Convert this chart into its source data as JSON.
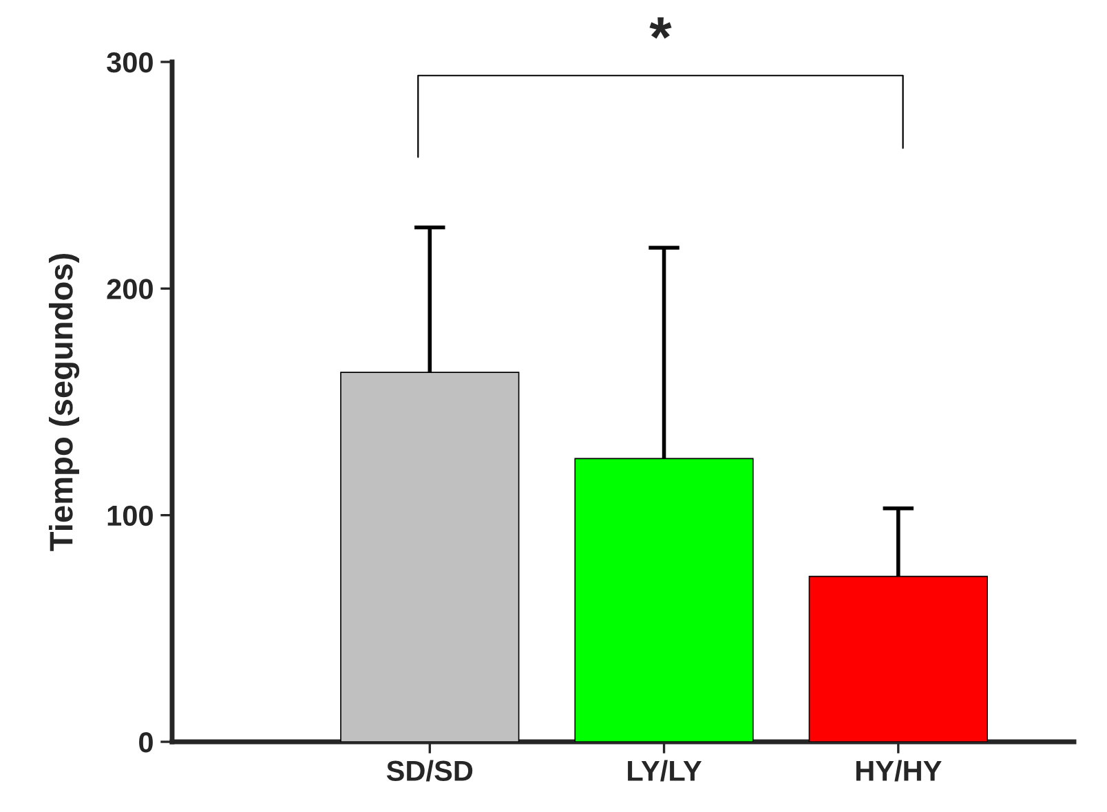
{
  "chart_data": {
    "type": "bar",
    "ylabel": "Tiempo (segundos)",
    "categories": [
      "SD/SD",
      "LY/LY",
      "HY/HY"
    ],
    "values": [
      163,
      125,
      73
    ],
    "errors": [
      64,
      93,
      30
    ],
    "colors": [
      "#c0c0c0",
      "#00ff00",
      "#ff0000"
    ],
    "ylim": [
      0,
      300
    ],
    "yticks": [
      0,
      100,
      200,
      300
    ],
    "grid": false,
    "legend": false,
    "annotations": [
      "*"
    ]
  }
}
